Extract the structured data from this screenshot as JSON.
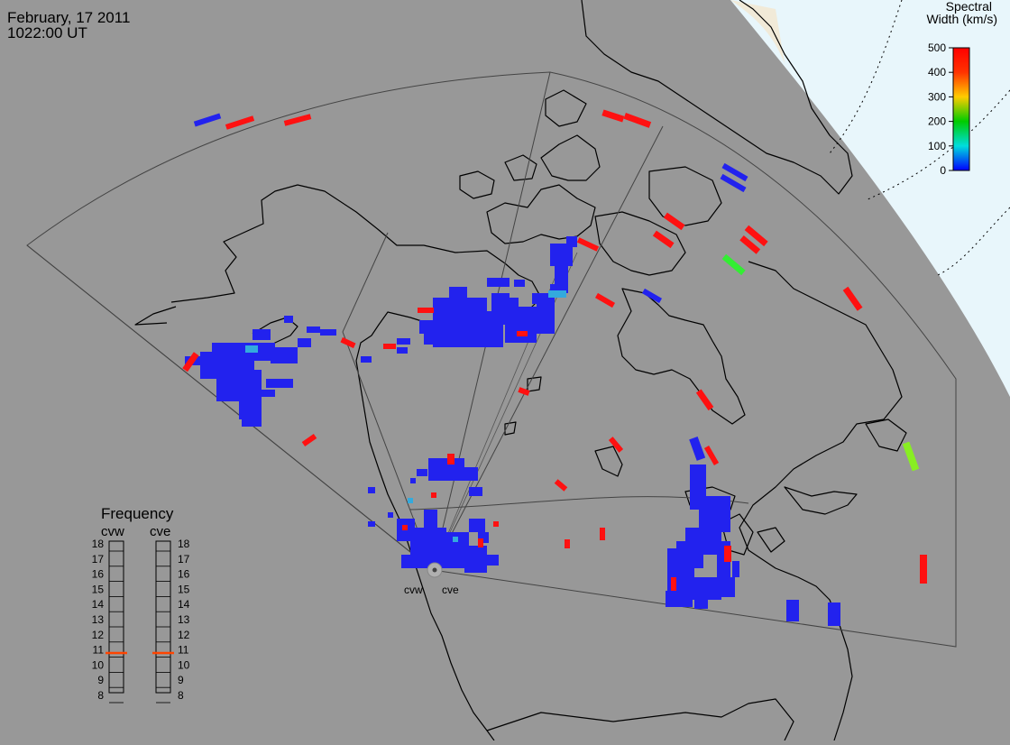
{
  "header": {
    "date": "February, 17 2011",
    "time": "1022:00 UT"
  },
  "colorbar": {
    "title_line1": "Spectral",
    "title_line2": "Width (km/s)",
    "ticks": [
      "500",
      "400",
      "300",
      "200",
      "100",
      "0"
    ],
    "colors": [
      "#ff0000",
      "#ff9900",
      "#ffee00",
      "#00cc00",
      "#00dddd",
      "#0000ff"
    ]
  },
  "frequency": {
    "title": "Frequency",
    "radars": [
      {
        "name": "cvw",
        "value_mhz": 10.8
      },
      {
        "name": "cve",
        "value_mhz": 10.8
      }
    ],
    "ticks": [
      "18",
      "17",
      "16",
      "15",
      "14",
      "13",
      "12",
      "11",
      "10",
      "9",
      "8"
    ]
  },
  "sites": [
    {
      "label": "cvw"
    },
    {
      "label": "cve"
    }
  ],
  "colors": {
    "background": "#989898",
    "daylight": "#e8f6fb",
    "scatter_blue": "#2222ee",
    "scatter_red": "#ff1111",
    "scatter_green": "#33ee33",
    "scatter_cyan": "#33aadd",
    "frequency_marker": "#ff4400"
  }
}
